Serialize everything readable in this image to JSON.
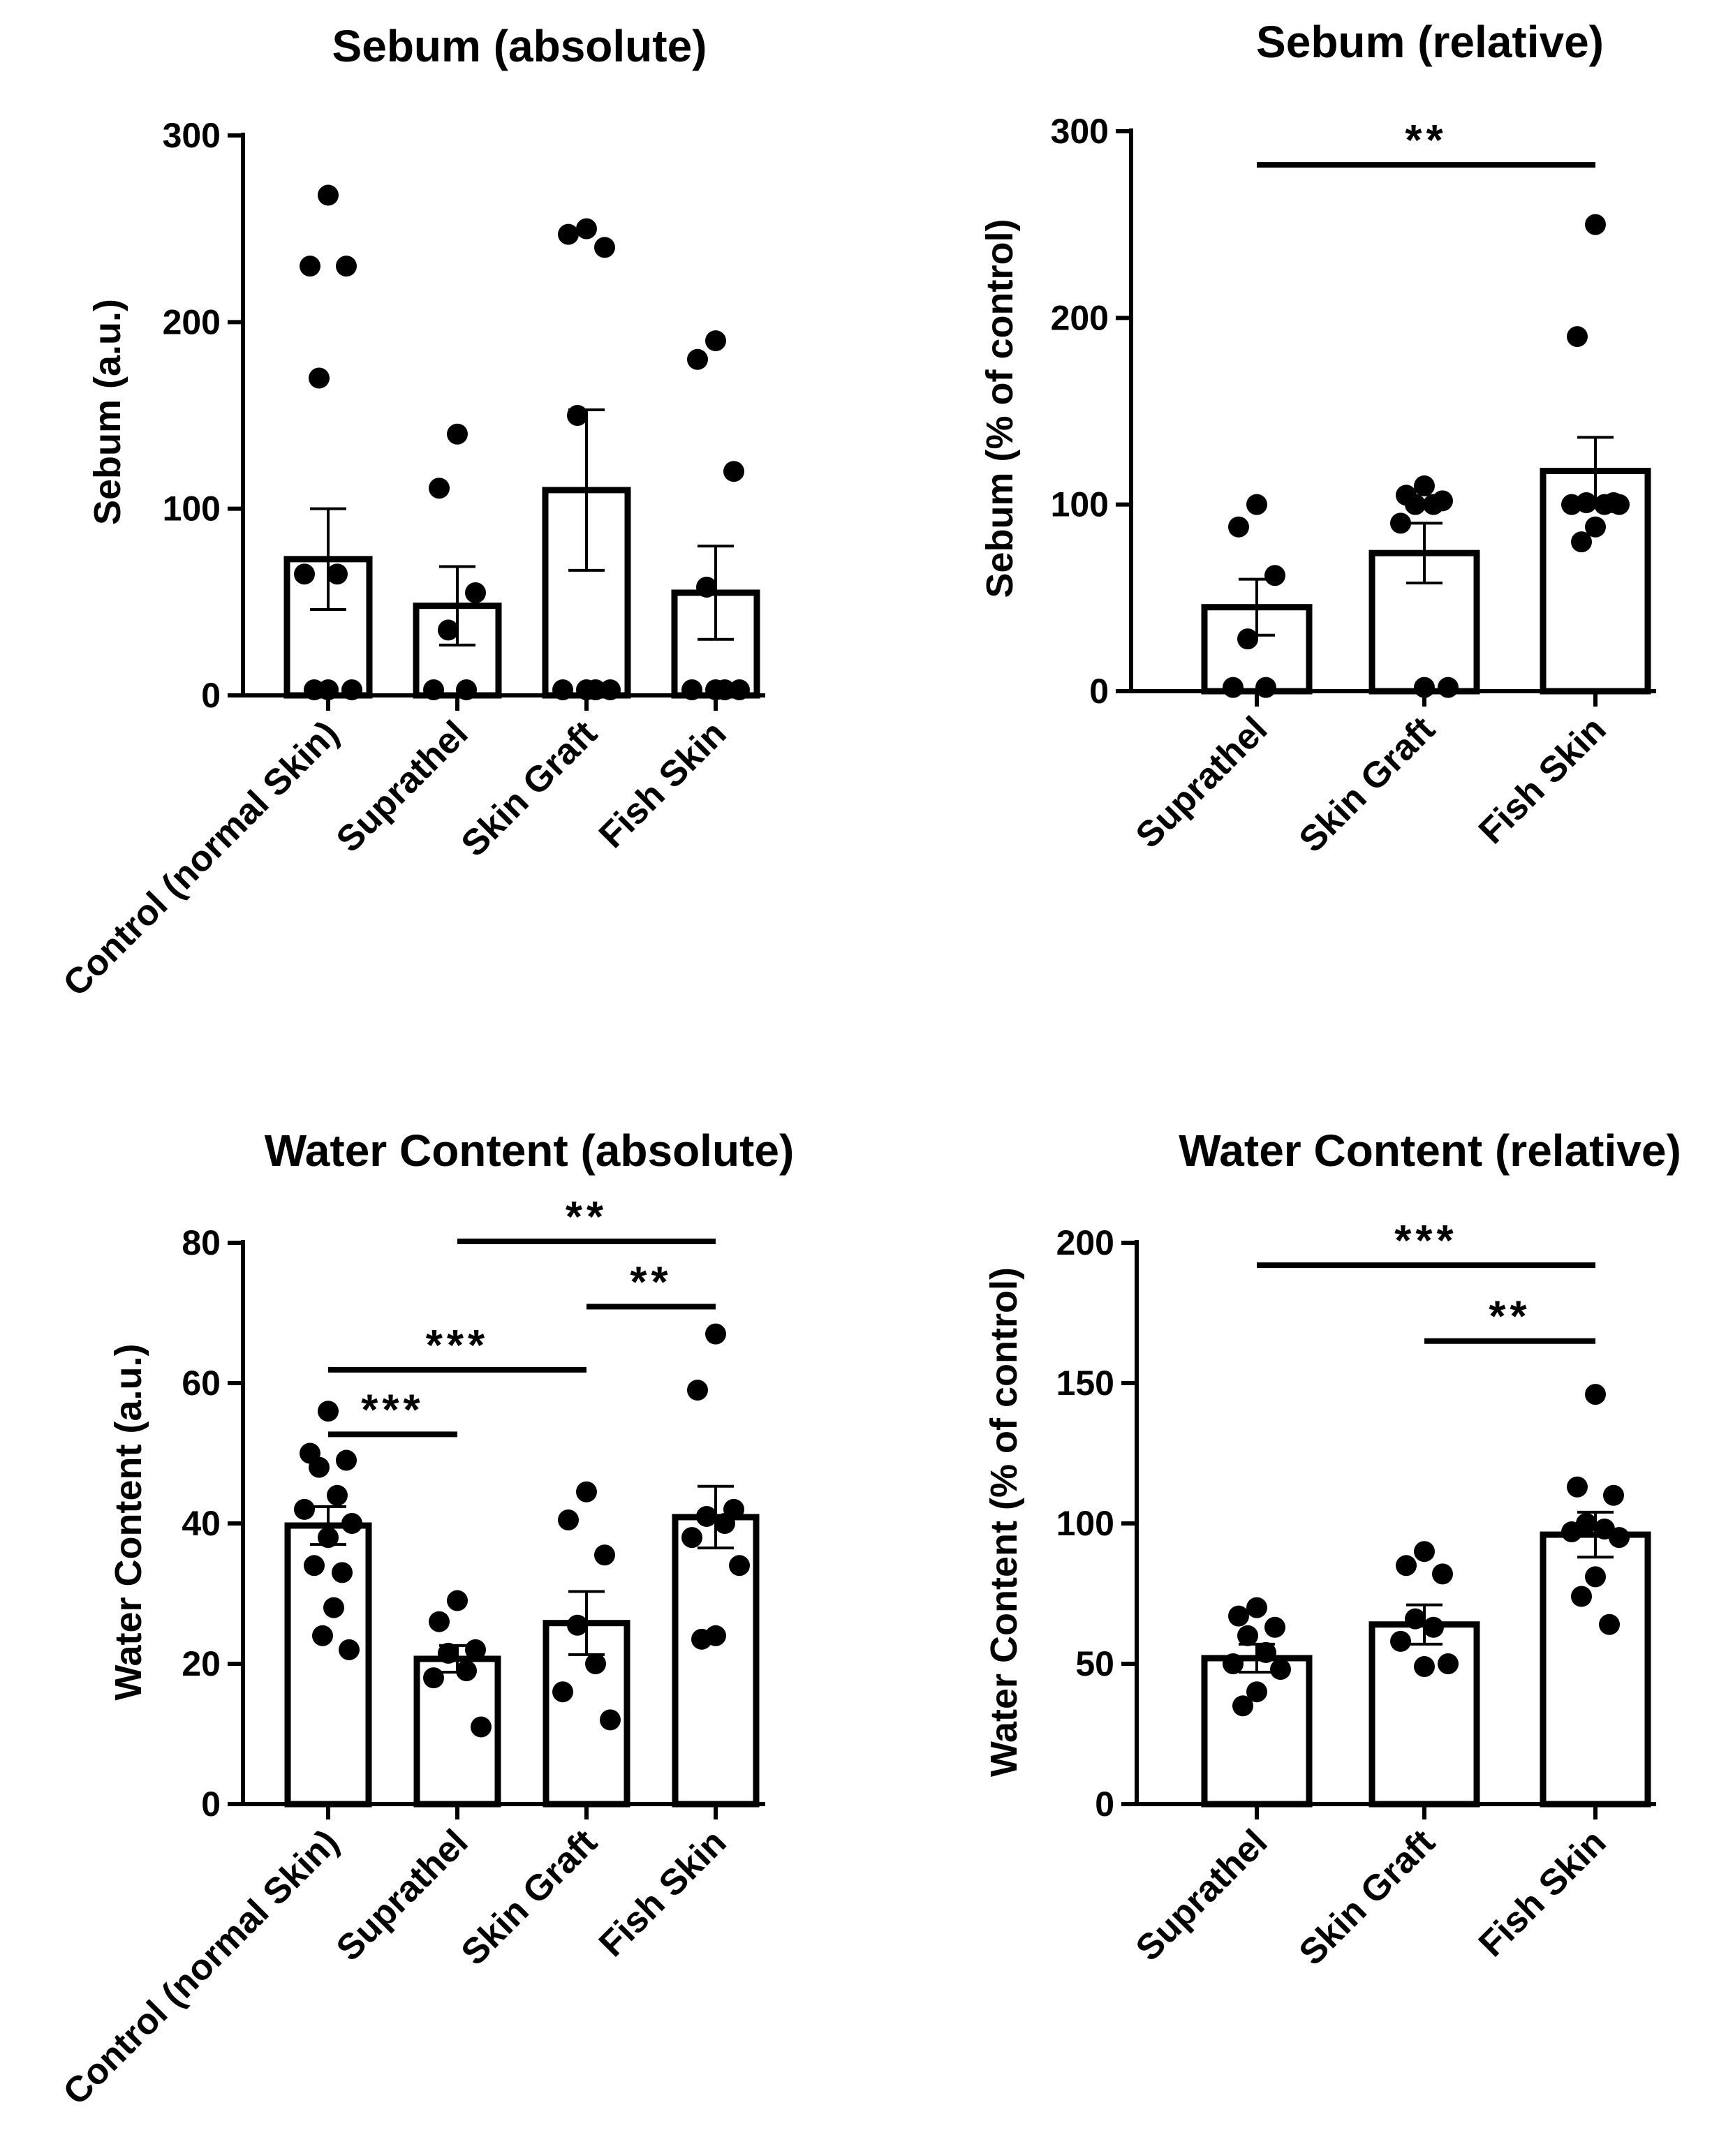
{
  "colors": {
    "ink": "#000000",
    "bar_fill": "#ffffff",
    "background": "#ffffff"
  },
  "chart_data": [
    {
      "type": "bar",
      "title": "Sebum (absolute)",
      "ylabel": "Sebum (a.u.)",
      "xlabel": "",
      "ylim": [
        0,
        300
      ],
      "yticks": [
        0,
        100,
        200,
        300
      ],
      "categories": [
        "Control (normal Skin)",
        "Suprathel",
        "Skin Graft",
        "Fish Skin"
      ],
      "values": [
        73,
        48,
        110,
        55
      ],
      "sem": [
        27,
        21,
        43,
        25
      ],
      "points": [
        [
          268,
          230,
          230,
          170,
          65,
          65,
          3,
          3,
          3
        ],
        [
          140,
          111,
          55,
          35,
          3,
          3
        ],
        [
          250,
          247,
          240,
          150,
          3,
          3,
          3,
          3
        ],
        [
          190,
          180,
          120,
          58,
          3,
          3,
          3,
          3
        ]
      ],
      "significance": []
    },
    {
      "type": "bar",
      "title": "Sebum (relative)",
      "ylabel": "Sebum (% of control)",
      "xlabel": "",
      "ylim": [
        0,
        300
      ],
      "yticks": [
        0,
        100,
        200,
        300
      ],
      "categories": [
        "Suprathel",
        "Skin Graft",
        "Fish Skin"
      ],
      "values": [
        45,
        74,
        118
      ],
      "sem": [
        15,
        16,
        18
      ],
      "points": [
        [
          100,
          88,
          62,
          28,
          2,
          2
        ],
        [
          110,
          105,
          102,
          100,
          100,
          90,
          2,
          2
        ],
        [
          250,
          190,
          101,
          101,
          100,
          100,
          100,
          88,
          80
        ]
      ],
      "significance": [
        {
          "from": 0,
          "to": 2,
          "y": 282,
          "label": "**"
        }
      ]
    },
    {
      "type": "bar",
      "title": "Water Content (absolute)",
      "ylabel": "Water Content (a.u.)",
      "xlabel": "",
      "ylim": [
        0,
        80
      ],
      "yticks": [
        0,
        20,
        40,
        60,
        80
      ],
      "categories": [
        "Control (normal Skin)",
        "Suprathel",
        "Skin Graft",
        "Fish Skin"
      ],
      "values": [
        39.7,
        20.7,
        25.8,
        40.9
      ],
      "sem": [
        2.7,
        1.9,
        4.5,
        4.4
      ],
      "points": [
        [
          56,
          50,
          49,
          48,
          44,
          42,
          40,
          38,
          34,
          33,
          28,
          24,
          22
        ],
        [
          29,
          26,
          22,
          21.5,
          19,
          18,
          11
        ],
        [
          44.5,
          40.5,
          35.5,
          25.5,
          20,
          16,
          12
        ],
        [
          67,
          59,
          42,
          41,
          40,
          38,
          34,
          24,
          23.5
        ]
      ],
      "significance": [
        {
          "from": 1,
          "to": 3,
          "y": 80.2,
          "label": "**"
        },
        {
          "from": 2,
          "to": 3,
          "y": 70.9,
          "label": "**"
        },
        {
          "from": 0,
          "to": 2,
          "y": 61.9,
          "label": "***"
        },
        {
          "from": 0,
          "to": 1,
          "y": 52.7,
          "label": "***"
        }
      ]
    },
    {
      "type": "bar",
      "title": "Water Content (relative)",
      "ylabel": "Water Content (% of control)",
      "xlabel": "",
      "ylim": [
        0,
        200
      ],
      "yticks": [
        0,
        50,
        100,
        150,
        200
      ],
      "categories": [
        "Suprathel",
        "Skin Graft",
        "Fish Skin"
      ],
      "values": [
        52,
        64,
        96
      ],
      "sem": [
        5,
        7,
        8
      ],
      "points": [
        [
          70,
          67,
          63,
          60,
          54,
          50,
          48,
          40,
          35
        ],
        [
          90,
          85,
          82,
          66,
          63,
          58,
          50,
          49
        ],
        [
          146,
          113,
          110,
          100,
          98,
          97,
          95,
          81,
          74,
          64
        ]
      ],
      "significance": [
        {
          "from": 0,
          "to": 2,
          "y": 192,
          "label": "***"
        },
        {
          "from": 1,
          "to": 2,
          "y": 165,
          "label": "**"
        }
      ]
    }
  ]
}
